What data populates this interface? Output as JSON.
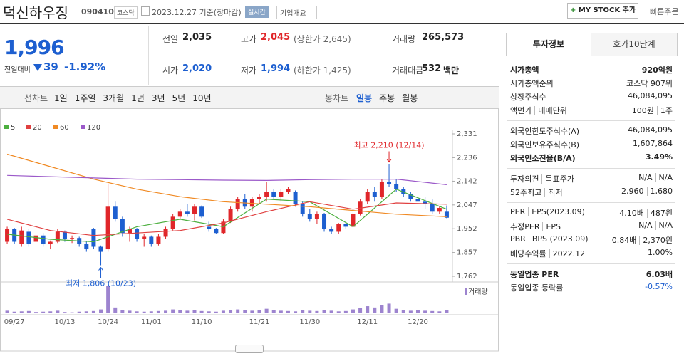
{
  "header": {
    "title": "덕신하우징",
    "code": "090410",
    "market": "코스닥",
    "date": "2023.12.27 기준(장마감)",
    "realtime": "실시간",
    "company": "기업개요",
    "mystock": "MY STOCK 추가",
    "quick_order": "빠른주문"
  },
  "quote": {
    "price": "1,996",
    "change_label": "전일대비",
    "change": "39",
    "rate": "-1.92%",
    "stats": [
      {
        "label": "전일",
        "value": "2,035",
        "color": "#222"
      },
      {
        "label": "고가",
        "value": "2,045",
        "sub": "(상한가 2,645)",
        "color": "#e0262a"
      },
      {
        "label": "거래량",
        "value": "265,573",
        "color": "#222"
      },
      {
        "label": "시가",
        "value": "2,020",
        "color": "#1d5fd0"
      },
      {
        "label": "저가",
        "value": "1,994",
        "sub": "(하한가 1,425)",
        "color": "#1d5fd0"
      },
      {
        "label": "거래대금",
        "value": "532",
        "sub": "백만",
        "color": "#222"
      }
    ]
  },
  "tabs": {
    "line_label": "선차트",
    "line_periods": [
      "1일",
      "1주일",
      "3개월",
      "1년",
      "3년",
      "5년",
      "10년"
    ],
    "candle_label": "봉차트",
    "candle_periods": [
      "일봉",
      "주봉",
      "월봉"
    ]
  },
  "info": {
    "tabs": [
      "투자정보",
      "호가10단계"
    ],
    "groups": [
      [
        {
          "labels": [
            "시가총액"
          ],
          "values": [
            "920억원"
          ],
          "emphasis": true
        },
        {
          "labels": [
            "시가총액순위"
          ],
          "values": [
            "코스닥 907위"
          ]
        },
        {
          "labels": [
            "상장주식수"
          ],
          "values": [
            "46,084,095"
          ]
        },
        {
          "labels": [
            "액면가",
            "매매단위"
          ],
          "values": [
            "100원",
            "1주"
          ]
        }
      ],
      [
        {
          "labels": [
            "외국인한도주식수(A)"
          ],
          "values": [
            "46,084,095"
          ]
        },
        {
          "labels": [
            "외국인보유주식수(B)"
          ],
          "values": [
            "1,607,864"
          ]
        },
        {
          "labels": [
            "외국인소진율(B/A)"
          ],
          "values": [
            "3.49%"
          ],
          "emphasis": true
        }
      ],
      [
        {
          "labels": [
            "투자의견",
            "목표주가"
          ],
          "values": [
            "N/A",
            "N/A"
          ]
        },
        {
          "labels": [
            "52주최고",
            "최저"
          ],
          "values": [
            "2,960",
            "1,680"
          ]
        }
      ],
      [
        {
          "labels": [
            "PER",
            "EPS(2023.09)"
          ],
          "values": [
            "4.10배",
            "487원"
          ]
        },
        {
          "labels": [
            "추정PER",
            "EPS"
          ],
          "values": [
            "N/A",
            "N/A"
          ]
        },
        {
          "labels": [
            "PBR",
            "BPS (2023.09)"
          ],
          "values": [
            "0.84배",
            "2,370원"
          ]
        },
        {
          "labels": [
            "배당수익률",
            "2022.12"
          ],
          "values": [
            "1.00%"
          ]
        }
      ],
      [
        {
          "labels": [
            "동일업종 PER"
          ],
          "values": [
            "6.03배"
          ],
          "emphasis": true
        },
        {
          "labels": [
            "동일업종 등락률"
          ],
          "values": [
            "-0.57%"
          ],
          "color": "#1d5fd0"
        }
      ]
    ]
  },
  "chart_data": {
    "type": "candlestick",
    "up_color": "#e0262a",
    "down_color": "#1d5fd0",
    "categories": [
      null,
      "09/27",
      null,
      null,
      null,
      null,
      null,
      null,
      "10/13",
      null,
      null,
      null,
      null,
      null,
      "10/24",
      null,
      null,
      null,
      null,
      null,
      "11/01",
      null,
      null,
      null,
      null,
      null,
      null,
      "11/10",
      null,
      null,
      null,
      null,
      null,
      null,
      null,
      "11/21",
      null,
      null,
      null,
      null,
      null,
      null,
      "11/30",
      null,
      null,
      null,
      null,
      null,
      null,
      null,
      "12/11",
      null,
      null,
      null,
      null,
      null,
      null,
      "12/20",
      null,
      null,
      null,
      null
    ],
    "open": [
      1900,
      1950,
      1890,
      1940,
      1900,
      1925,
      1890,
      1900,
      1940,
      1910,
      1915,
      1890,
      1950,
      1880,
      1870,
      2040,
      1990,
      1935,
      1950,
      1910,
      1920,
      1890,
      1920,
      1950,
      2000,
      2020,
      2010,
      2040,
      1960,
      1950,
      1935,
      1980,
      2030,
      2070,
      2040,
      2070,
      2080,
      2100,
      2080,
      2100,
      2100,
      2050,
      2010,
      1990,
      2010,
      1950,
      1940,
      1970,
      1960,
      2010,
      2060,
      2100,
      2080,
      2140,
      2130,
      2110,
      2090,
      2070,
      2060,
      2050,
      2020,
      2020
    ],
    "high": [
      1960,
      1955,
      1960,
      1950,
      1930,
      1935,
      1905,
      1950,
      1945,
      1925,
      1920,
      1900,
      1955,
      1885,
      2130,
      2060,
      2000,
      1960,
      1955,
      1930,
      1925,
      1930,
      1960,
      2010,
      2030,
      2050,
      2050,
      2045,
      1980,
      1955,
      1990,
      2040,
      2080,
      2090,
      2080,
      2090,
      2140,
      2110,
      2110,
      2120,
      2105,
      2060,
      2030,
      2020,
      2015,
      1960,
      1975,
      1975,
      2020,
      2070,
      2110,
      2120,
      2150,
      2210,
      2150,
      2120,
      2100,
      2080,
      2080,
      2070,
      2040,
      2045
    ],
    "low": [
      1890,
      1890,
      1880,
      1880,
      1895,
      1880,
      1870,
      1895,
      1900,
      1895,
      1880,
      1860,
      1870,
      1806,
      1860,
      1980,
      1920,
      1900,
      1900,
      1880,
      1880,
      1885,
      1910,
      1945,
      1990,
      2000,
      1985,
      1995,
      1940,
      1930,
      1930,
      1975,
      2020,
      2030,
      2020,
      2050,
      2060,
      2070,
      2060,
      2090,
      2040,
      2000,
      1980,
      1970,
      1940,
      1930,
      1930,
      1950,
      1955,
      2005,
      2050,
      2060,
      2070,
      2120,
      2100,
      2080,
      2060,
      2040,
      2030,
      2010,
      2010,
      1994
    ],
    "close": [
      1950,
      1900,
      1945,
      1890,
      1925,
      1890,
      1900,
      1940,
      1910,
      1915,
      1890,
      1870,
      1880,
      1860,
      2040,
      1990,
      1935,
      1950,
      1910,
      1920,
      1890,
      1920,
      1950,
      2000,
      2020,
      2010,
      2040,
      2000,
      1950,
      1935,
      1980,
      2030,
      2070,
      2040,
      2070,
      2080,
      2100,
      2080,
      2100,
      2110,
      2050,
      2010,
      1990,
      2010,
      1950,
      1940,
      1970,
      1960,
      2010,
      2060,
      2100,
      2080,
      2140,
      2130,
      2110,
      2090,
      2070,
      2060,
      2050,
      2020,
      2035,
      1996
    ],
    "volume": [
      200000,
      125000,
      150000,
      175000,
      100000,
      125000,
      150000,
      200000,
      100000,
      75000,
      125000,
      150000,
      175000,
      300000,
      2100000,
      450000,
      250000,
      200000,
      150000,
      125000,
      150000,
      175000,
      200000,
      300000,
      225000,
      200000,
      250000,
      175000,
      150000,
      125000,
      200000,
      275000,
      300000,
      225000,
      200000,
      250000,
      350000,
      225000,
      200000,
      175000,
      150000,
      225000,
      200000,
      175000,
      250000,
      200000,
      150000,
      175000,
      300000,
      400000,
      550000,
      450000,
      650000,
      750000,
      350000,
      250000,
      200000,
      225000,
      200000,
      175000,
      150000,
      265573
    ],
    "volume_name": "거래량",
    "volume_color": "#9d84cf",
    "ma": [
      {
        "name": "5",
        "color": "#4caf3f",
        "x": [
          0,
          6,
          12,
          18,
          24,
          30,
          36,
          42,
          48,
          54,
          61
        ],
        "values": [
          1930,
          1910,
          1900,
          1960,
          1990,
          1960,
          2070,
          2060,
          1960,
          2110,
          2030
        ]
      },
      {
        "name": "20",
        "color": "#e04040",
        "x": [
          0,
          6,
          12,
          18,
          24,
          30,
          36,
          42,
          48,
          54,
          61
        ],
        "values": [
          1990,
          1945,
          1925,
          1935,
          1945,
          1975,
          2020,
          2060,
          2030,
          2055,
          2050
        ]
      },
      {
        "name": "60",
        "color": "#f08a24",
        "x": [
          0,
          6,
          12,
          18,
          24,
          30,
          36,
          42,
          48,
          54,
          61
        ],
        "values": [
          2250,
          2200,
          2150,
          2110,
          2080,
          2060,
          2050,
          2040,
          2025,
          2010,
          2000
        ]
      },
      {
        "name": "120",
        "color": "#9b59c9",
        "x": [
          0,
          6,
          12,
          18,
          24,
          30,
          36,
          42,
          48,
          54,
          61
        ],
        "values": [
          2165,
          2160,
          2155,
          2150,
          2148,
          2146,
          2145,
          2148,
          2150,
          2150,
          2128
        ]
      }
    ],
    "ylim": [
      1762,
      2331
    ],
    "yticks": [
      {
        "value": 1762,
        "label": "1,762"
      },
      {
        "value": 1857,
        "label": "1,857"
      },
      {
        "value": 1952,
        "label": "1,952"
      },
      {
        "value": 2047,
        "label": "2,047"
      },
      {
        "value": 2142,
        "label": "2,142"
      },
      {
        "value": 2236,
        "label": "2,236"
      },
      {
        "value": 2331,
        "label": "2,331"
      }
    ],
    "high_label": "최고 2,210 (12/14)",
    "low_label": "최저 1,806 (10/23)"
  }
}
